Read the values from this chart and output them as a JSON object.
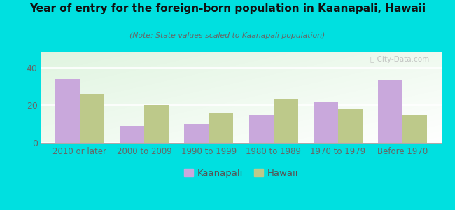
{
  "title": "Year of entry for the foreign-born population in Kaanapali, Hawaii",
  "subtitle": "(Note: State values scaled to Kaanapali population)",
  "categories": [
    "2010 or later",
    "2000 to 2009",
    "1990 to 1999",
    "1980 to 1989",
    "1970 to 1979",
    "Before 1970"
  ],
  "kaanapali_values": [
    34,
    9,
    10,
    15,
    22,
    33
  ],
  "hawaii_values": [
    26,
    20,
    16,
    23,
    18,
    15
  ],
  "kaanapali_color": "#c9a8dc",
  "hawaii_color": "#bdc98a",
  "background_color": "#00e0e0",
  "ylim": [
    0,
    48
  ],
  "yticks": [
    0,
    20,
    40
  ],
  "bar_width": 0.38,
  "legend_labels": [
    "Kaanapali",
    "Hawaii"
  ],
  "watermark": "Ⓢ City-Data.com"
}
